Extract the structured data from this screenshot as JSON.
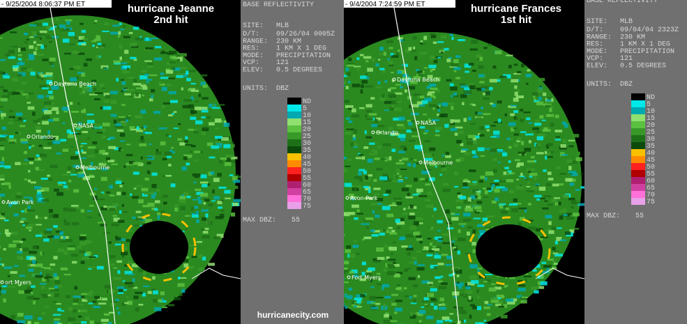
{
  "panels": [
    {
      "timestamp": "- 9/25/2004 8:06:37 PM ET",
      "title": [
        "hurricane Jeanne",
        "2nd hit"
      ],
      "cities": [
        "Daytona Beach",
        "NASA",
        "Orlando",
        "Melbourne",
        "Avon Park",
        "ort Myers"
      ],
      "info": {
        "heading": "BASE REFLECTIVITY",
        "rows": [
          [
            "SITE:",
            "MLB"
          ],
          [
            "D/T:",
            "09/26/04 0005Z"
          ],
          [
            "RANGE:",
            "230 KM"
          ],
          [
            "RES:",
            "1 KM X 1 DEG"
          ],
          [
            "MODE:",
            "PRECIPITATION"
          ],
          [
            "VCP:",
            "121"
          ],
          [
            "ELEV:",
            "0.5 DEGREES"
          ]
        ],
        "units": [
          "UNITS:",
          "DBZ"
        ]
      },
      "legend": [
        [
          "ND",
          "#000000"
        ],
        [
          "5",
          "#00e8e8"
        ],
        [
          "10",
          "#00a8b0"
        ],
        [
          "15",
          "#90e070"
        ],
        [
          "20",
          "#5cc040"
        ],
        [
          "25",
          "#389828"
        ],
        [
          "30",
          "#1e7018"
        ],
        [
          "35",
          "#0c4a0c"
        ],
        [
          "40",
          "#f8c000"
        ],
        [
          "45",
          "#ff8a00"
        ],
        [
          "50",
          "#ff2020"
        ],
        [
          "55",
          "#b00000"
        ],
        [
          "60",
          "#b02070"
        ],
        [
          "65",
          "#d040a0"
        ],
        [
          "70",
          "#ff70d8"
        ],
        [
          "75",
          "#e8a0e8"
        ]
      ],
      "max": [
        "MAX DBZ:",
        "55"
      ]
    },
    {
      "timestamp": "- 9/4/2004 7:24:59 PM ET",
      "title": [
        "hurricane Frances",
        "1st hit"
      ],
      "cities": [
        "Daytona Beach",
        "NASA",
        "Orlando",
        "Melbourne",
        "Avon Park",
        "Fort Myers"
      ],
      "info": {
        "heading": "BASE REFLECTIVITY",
        "rows": [
          [
            "SITE:",
            "MLB"
          ],
          [
            "D/T:",
            "09/04/04 2323Z"
          ],
          [
            "RANGE:",
            "230 KM"
          ],
          [
            "RES:",
            "1 KM X 1 DEG"
          ],
          [
            "MODE:",
            "PRECIPITATION"
          ],
          [
            "VCP:",
            "121"
          ],
          [
            "ELEV:",
            "0.5 DEGREES"
          ]
        ],
        "units": [
          "UNITS:",
          "DBZ"
        ]
      },
      "legend": [
        [
          "ND",
          "#000000"
        ],
        [
          "5",
          "#00e8e8"
        ],
        [
          "10",
          "#00a8b0"
        ],
        [
          "15",
          "#90e070"
        ],
        [
          "20",
          "#5cc040"
        ],
        [
          "25",
          "#389828"
        ],
        [
          "30",
          "#1e7018"
        ],
        [
          "35",
          "#0c4a0c"
        ],
        [
          "40",
          "#f8c000"
        ],
        [
          "45",
          "#ff8a00"
        ],
        [
          "50",
          "#ff2020"
        ],
        [
          "55",
          "#b00000"
        ],
        [
          "60",
          "#b02070"
        ],
        [
          "65",
          "#d040a0"
        ],
        [
          "70",
          "#ff70d8"
        ],
        [
          "75",
          "#e8a0e8"
        ]
      ],
      "max": [
        "MAX DBZ:",
        "55"
      ]
    }
  ],
  "footer": "hurricanecity.com"
}
